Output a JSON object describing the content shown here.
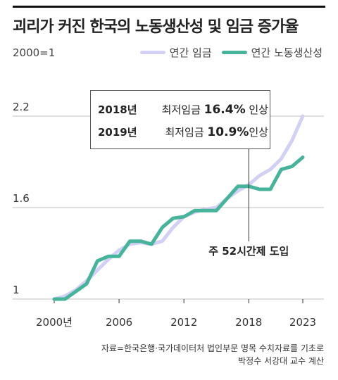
{
  "header": {
    "title": "괴리가 커진 한국의 노동생산성 및 임금 증가율",
    "base_note": "2000=1"
  },
  "legend": [
    {
      "label": "연간 임금",
      "color": "#d3d0f5"
    },
    {
      "label": "연간 노동생산성",
      "color": "#46b39b"
    }
  ],
  "callout": {
    "rows": [
      {
        "year": "2018년",
        "pre": "최저임금 ",
        "value": "16.4%",
        "post": " 인상"
      },
      {
        "year": "2019년",
        "pre": "최저임금 ",
        "value": "10.9%",
        "post": "인상"
      }
    ]
  },
  "annotation": {
    "text": "주 52시간제 도입",
    "x": 2018
  },
  "source": {
    "line1": "자료=한국은행·국가데이터처 법인부문 명목 수치자료를 기초로",
    "line2": "박정수 서강대 교수 계산"
  },
  "chart_data": {
    "type": "line",
    "title": "괴리가 커진 한국의 노동생산성 및 임금 증가율",
    "ylabel": "2000=1",
    "xlabel": "",
    "ylim": [
      1.0,
      2.2
    ],
    "xlim": [
      1998,
      2024
    ],
    "yticks": [
      1.0,
      1.6,
      2.2
    ],
    "ytick_labels": [
      "1",
      "1.6",
      "2.2"
    ],
    "xticks": [
      2000,
      2006,
      2012,
      2018,
      2023
    ],
    "xtick_labels": [
      "2000년",
      "2006",
      "2012",
      "2018",
      "2023"
    ],
    "grid": "horizontal",
    "legend_position": "top-right",
    "x": [
      2000,
      2001,
      2002,
      2003,
      2004,
      2005,
      2006,
      2007,
      2008,
      2009,
      2010,
      2011,
      2012,
      2013,
      2014,
      2015,
      2016,
      2017,
      2018,
      2019,
      2020,
      2021,
      2022,
      2023
    ],
    "series": [
      {
        "name": "연간 임금",
        "color": "#d3d0f5",
        "values": [
          1.0,
          1.02,
          1.06,
          1.12,
          1.19,
          1.26,
          1.32,
          1.36,
          1.37,
          1.36,
          1.38,
          1.47,
          1.54,
          1.57,
          1.59,
          1.6,
          1.66,
          1.71,
          1.75,
          1.81,
          1.85,
          1.92,
          2.04,
          2.2
        ]
      },
      {
        "name": "연간 노동생산성",
        "color": "#46b39b",
        "values": [
          1.0,
          1.0,
          1.05,
          1.1,
          1.25,
          1.28,
          1.28,
          1.38,
          1.38,
          1.36,
          1.47,
          1.53,
          1.54,
          1.58,
          1.58,
          1.58,
          1.66,
          1.74,
          1.74,
          1.72,
          1.72,
          1.85,
          1.87,
          1.93
        ]
      }
    ]
  }
}
